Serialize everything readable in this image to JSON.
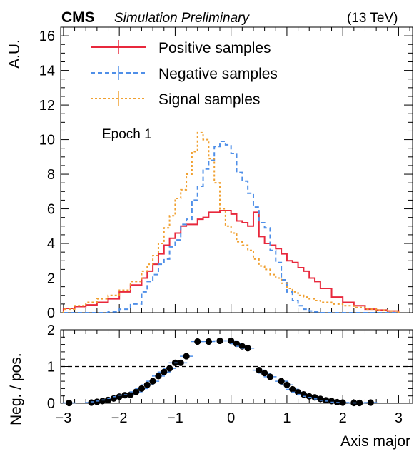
{
  "header": {
    "experiment": "CMS",
    "status": "Simulation Preliminary",
    "energy": "(13 TeV)"
  },
  "annotation": "Epoch 1",
  "colors": {
    "positive": "#e8283c",
    "negative": "#4f8fe8",
    "signal": "#f0a030",
    "ratio_points": "#000000"
  },
  "chart_data": [
    {
      "type": "line",
      "style": "step-histogram",
      "ylabel": "A.U.",
      "xlim": [
        -3.05,
        3.25
      ],
      "ylim": [
        0,
        16.5
      ],
      "yticks": [
        "0",
        "2",
        "4",
        "6",
        "8",
        "10",
        "12",
        "14",
        "16"
      ],
      "ytick_values": [
        0,
        2,
        4,
        6,
        8,
        10,
        12,
        14,
        16
      ],
      "legend_position": "top-left",
      "bin_edges": [
        -3.0,
        -2.8,
        -2.6,
        -2.4,
        -2.2,
        -2.0,
        -1.8,
        -1.6,
        -1.5,
        -1.4,
        -1.3,
        -1.2,
        -1.1,
        -1.0,
        -0.9,
        -0.8,
        -0.7,
        -0.6,
        -0.5,
        -0.4,
        -0.3,
        -0.2,
        -0.1,
        0.0,
        0.1,
        0.2,
        0.3,
        0.4,
        0.5,
        0.6,
        0.7,
        0.8,
        0.9,
        1.0,
        1.1,
        1.2,
        1.3,
        1.4,
        1.5,
        1.6,
        1.8,
        2.0,
        2.2,
        2.4,
        2.6,
        2.8,
        3.0
      ],
      "series": [
        {
          "name": "Positive samples",
          "color_key": "positive",
          "dash": "solid",
          "values": [
            0.25,
            0.35,
            0.45,
            0.6,
            0.8,
            1.2,
            1.6,
            2.0,
            2.4,
            2.8,
            3.4,
            3.9,
            4.3,
            4.6,
            5.0,
            5.1,
            5.1,
            5.4,
            5.5,
            5.8,
            5.8,
            5.9,
            5.9,
            5.7,
            5.3,
            5.2,
            5.0,
            5.8,
            4.4,
            4.0,
            3.9,
            3.7,
            3.4,
            3.0,
            2.9,
            2.6,
            2.4,
            2.0,
            1.8,
            1.4,
            0.9,
            0.6,
            0.4,
            0.2,
            0.15,
            0.1
          ]
        },
        {
          "name": "Negative samples",
          "color_key": "negative",
          "dash": "6,4",
          "values": [
            0.0,
            0.0,
            0.0,
            0.0,
            0.05,
            0.2,
            0.5,
            1.2,
            1.8,
            2.2,
            2.8,
            3.1,
            3.8,
            4.2,
            5.1,
            5.4,
            6.5,
            7.3,
            8.3,
            8.8,
            9.6,
            9.9,
            9.7,
            9.2,
            8.1,
            7.6,
            6.9,
            6.1,
            5.2,
            4.9,
            3.6,
            2.9,
            1.9,
            1.2,
            0.7,
            0.4,
            0.2,
            0.1,
            0.05,
            0.0,
            0.0,
            0.0,
            0.0,
            0.0,
            0.0,
            0.0
          ]
        },
        {
          "name": "Signal samples",
          "color_key": "signal",
          "dash": "3,3",
          "values": [
            0.2,
            0.4,
            0.6,
            0.8,
            1.0,
            1.3,
            1.8,
            2.4,
            2.8,
            3.3,
            4.0,
            4.9,
            5.6,
            6.6,
            7.1,
            8.0,
            9.3,
            10.4,
            10.0,
            8.9,
            7.5,
            6.0,
            5.0,
            4.6,
            4.1,
            3.9,
            3.6,
            3.1,
            2.7,
            2.5,
            2.2,
            2.0,
            1.7,
            1.4,
            1.2,
            1.0,
            0.9,
            0.8,
            0.7,
            0.6,
            0.5,
            0.4,
            0.3,
            0.2,
            0.15,
            0.1
          ]
        }
      ]
    },
    {
      "type": "scatter",
      "ylabel": "Neg. / pos.",
      "xlabel": "Axis major",
      "xlim": [
        -3.05,
        3.25
      ],
      "ylim": [
        0,
        2
      ],
      "xticks": [
        "−3",
        "−2",
        "−1",
        "0",
        "1",
        "2",
        "3"
      ],
      "xtick_values": [
        -3,
        -2,
        -1,
        0,
        1,
        2,
        3
      ],
      "yticks": [
        "0",
        "1",
        "2"
      ],
      "ytick_values": [
        0,
        1,
        2
      ],
      "reference_line": 1,
      "x": [
        -2.9,
        -2.5,
        -2.4,
        -2.3,
        -2.2,
        -2.1,
        -2.0,
        -1.9,
        -1.8,
        -1.7,
        -1.6,
        -1.5,
        -1.4,
        -1.3,
        -1.2,
        -1.1,
        -1.0,
        -0.9,
        -0.8,
        -0.6,
        -0.4,
        -0.2,
        0.0,
        0.1,
        0.2,
        0.3,
        0.5,
        0.6,
        0.7,
        0.9,
        1.0,
        1.1,
        1.2,
        1.3,
        1.4,
        1.5,
        1.6,
        1.7,
        1.8,
        1.9,
        2.0,
        2.2,
        2.3,
        2.5
      ],
      "y": [
        0.01,
        0.02,
        0.04,
        0.06,
        0.09,
        0.13,
        0.18,
        0.22,
        0.23,
        0.31,
        0.4,
        0.5,
        0.6,
        0.74,
        0.85,
        0.95,
        1.1,
        1.1,
        1.28,
        1.68,
        1.68,
        1.7,
        1.7,
        1.62,
        1.55,
        1.5,
        0.9,
        0.82,
        0.72,
        0.6,
        0.5,
        0.38,
        0.3,
        0.24,
        0.19,
        0.16,
        0.12,
        0.08,
        0.06,
        0.03,
        0.02,
        0.01,
        0.01,
        0.02
      ]
    }
  ]
}
